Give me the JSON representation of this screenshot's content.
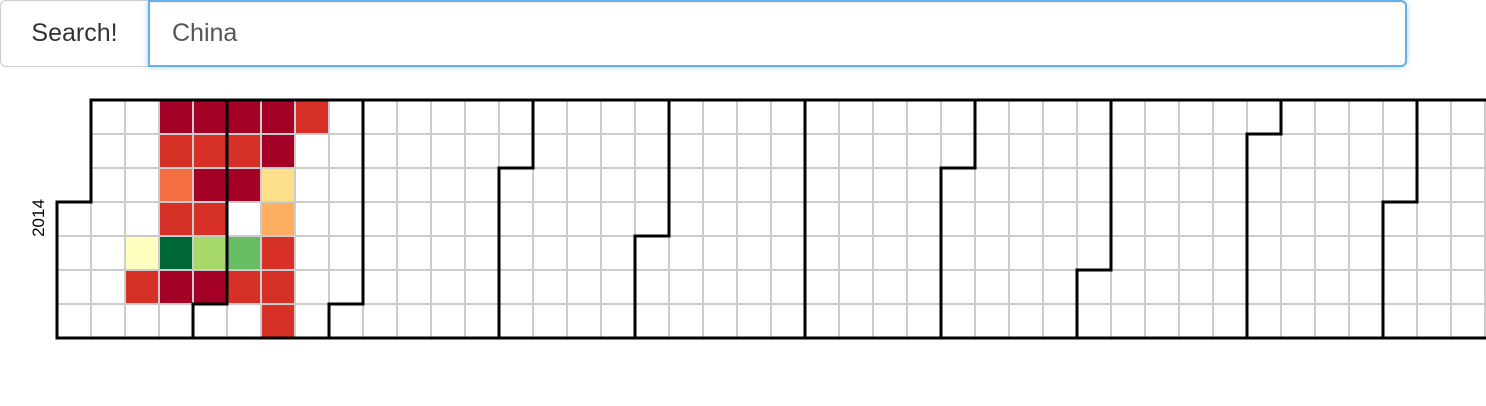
{
  "search": {
    "button_label": "Search!",
    "query": "China"
  },
  "calendar": {
    "year": "2014",
    "first_weekday_offset": 3,
    "total_days": 365,
    "visible_weeks": 43,
    "empty_color": "#ffffff",
    "grid_color": "#cccccc",
    "boundary_color": "#000000",
    "filled_cells": [
      {
        "week": 3,
        "day": 0,
        "color": "#a50026"
      },
      {
        "week": 4,
        "day": 0,
        "color": "#a50026"
      },
      {
        "week": 5,
        "day": 0,
        "color": "#a50026"
      },
      {
        "week": 6,
        "day": 0,
        "color": "#a50026"
      },
      {
        "week": 7,
        "day": 0,
        "color": "#d73027"
      },
      {
        "week": 3,
        "day": 1,
        "color": "#d73027"
      },
      {
        "week": 4,
        "day": 1,
        "color": "#d73027"
      },
      {
        "week": 5,
        "day": 1,
        "color": "#d73027"
      },
      {
        "week": 6,
        "day": 1,
        "color": "#a50026"
      },
      {
        "week": 3,
        "day": 2,
        "color": "#f46d43"
      },
      {
        "week": 4,
        "day": 2,
        "color": "#a50026"
      },
      {
        "week": 5,
        "day": 2,
        "color": "#a50026"
      },
      {
        "week": 6,
        "day": 2,
        "color": "#fee08b"
      },
      {
        "week": 3,
        "day": 3,
        "color": "#d73027"
      },
      {
        "week": 4,
        "day": 3,
        "color": "#d73027"
      },
      {
        "week": 6,
        "day": 3,
        "color": "#fdae61"
      },
      {
        "week": 2,
        "day": 4,
        "color": "#ffffbf"
      },
      {
        "week": 3,
        "day": 4,
        "color": "#006837"
      },
      {
        "week": 4,
        "day": 4,
        "color": "#a6d96a"
      },
      {
        "week": 5,
        "day": 4,
        "color": "#66bd63"
      },
      {
        "week": 6,
        "day": 4,
        "color": "#d73027"
      },
      {
        "week": 2,
        "day": 5,
        "color": "#d73027"
      },
      {
        "week": 3,
        "day": 5,
        "color": "#a50026"
      },
      {
        "week": 4,
        "day": 5,
        "color": "#a50026"
      },
      {
        "week": 5,
        "day": 5,
        "color": "#d73027"
      },
      {
        "week": 6,
        "day": 5,
        "color": "#d73027"
      },
      {
        "week": 6,
        "day": 6,
        "color": "#d73027"
      }
    ]
  }
}
